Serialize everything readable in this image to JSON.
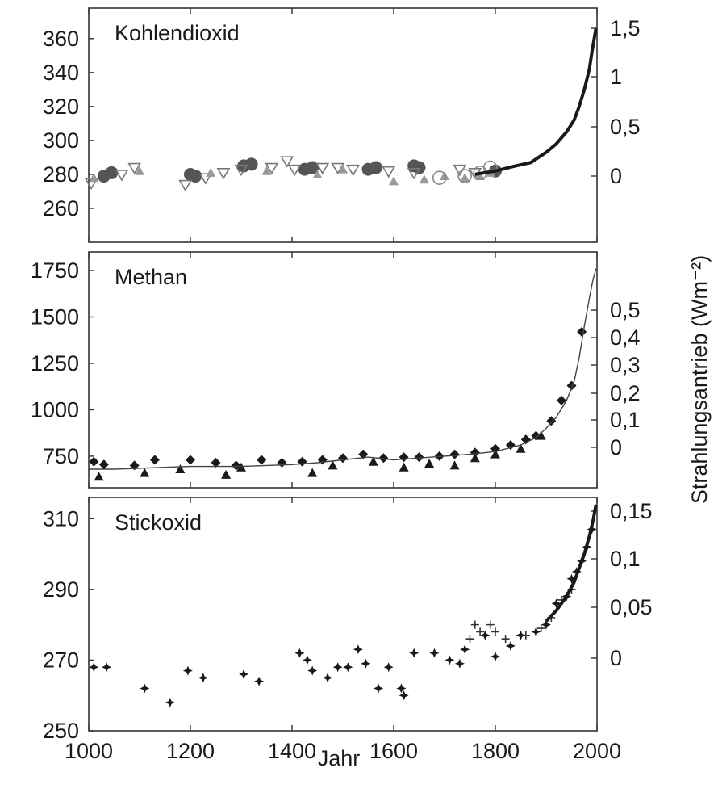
{
  "chart_data": [
    {
      "type": "scatter",
      "title": "Kohlendioxid",
      "xlim": [
        1000,
        2000
      ],
      "ylim": [
        240,
        378
      ],
      "y_ticks": [
        "260",
        "280",
        "300",
        "320",
        "340",
        "360"
      ],
      "y_tick_values": [
        260,
        280,
        300,
        320,
        340,
        360
      ],
      "y2_ticks": [
        "0",
        "0,5",
        "1",
        "1,5"
      ],
      "y2_tick_values": [
        0,
        0.5,
        1,
        1.5
      ],
      "series": [
        {
          "marker": "circle",
          "color": "#555555",
          "x": [
            1030,
            1045,
            1200,
            1210,
            1305,
            1320,
            1425,
            1440,
            1550,
            1565,
            1640,
            1650,
            1800
          ],
          "y": [
            279,
            281,
            280,
            279,
            285,
            286,
            283,
            284,
            283,
            284,
            285,
            284,
            282
          ]
        },
        {
          "marker": "triangle-down",
          "color": "#777777",
          "x": [
            1005,
            1065,
            1090,
            1190,
            1230,
            1265,
            1300,
            1360,
            1390,
            1405,
            1460,
            1490,
            1520,
            1590,
            1640,
            1730,
            1760
          ],
          "y": [
            275,
            280,
            284,
            274,
            278,
            281,
            283,
            284,
            288,
            283,
            284,
            284,
            283,
            282,
            281,
            283,
            281
          ]
        },
        {
          "marker": "triangle-up",
          "color": "#999999",
          "x": [
            1010,
            1100,
            1240,
            1350,
            1450,
            1500,
            1600,
            1660,
            1700,
            1740,
            1770,
            1790
          ],
          "y": [
            278,
            282,
            281,
            282,
            280,
            283,
            276,
            277,
            279,
            278,
            279,
            281
          ]
        },
        {
          "marker": "circle-open",
          "color": "#888888",
          "x": [
            1690,
            1740,
            1770,
            1790
          ],
          "y": [
            278,
            279,
            281,
            284
          ]
        },
        {
          "marker": "trend",
          "color": "#1a1a1a",
          "x": [
            1760,
            1800,
            1840,
            1870,
            1900,
            1920,
            1940,
            1955,
            1965,
            1975,
            1985,
            1990,
            1998
          ],
          "y": [
            280,
            282,
            285,
            287,
            293,
            298,
            305,
            312,
            320,
            330,
            342,
            352,
            366
          ]
        }
      ]
    },
    {
      "type": "scatter",
      "title": "Methan",
      "xlim": [
        1000,
        2000
      ],
      "ylim": [
        580,
        1850
      ],
      "y_ticks": [
        "750",
        "1000",
        "1250",
        "1500",
        "1750"
      ],
      "y_tick_values": [
        750,
        1000,
        1250,
        1500,
        1750
      ],
      "y2_ticks": [
        "0",
        "0,1",
        "0,2",
        "0,3",
        "0,4",
        "0,5"
      ],
      "y2_tick_values": [
        0,
        0.1,
        0.2,
        0.3,
        0.4,
        0.5
      ],
      "series": [
        {
          "marker": "diamond",
          "color": "#1a1a1a",
          "x": [
            1010,
            1030,
            1090,
            1130,
            1200,
            1250,
            1290,
            1340,
            1380,
            1420,
            1460,
            1500,
            1540,
            1580,
            1620,
            1650,
            1690,
            1720,
            1760,
            1800,
            1830,
            1860,
            1880,
            1910,
            1930,
            1950,
            1970
          ],
          "y": [
            720,
            705,
            700,
            730,
            730,
            715,
            700,
            730,
            715,
            720,
            730,
            740,
            760,
            740,
            745,
            745,
            750,
            760,
            770,
            790,
            810,
            840,
            860,
            940,
            1050,
            1130,
            1420
          ]
        },
        {
          "marker": "triangle-up",
          "color": "#1a1a1a",
          "x": [
            1020,
            1110,
            1180,
            1270,
            1300,
            1440,
            1480,
            1560,
            1620,
            1670,
            1720,
            1760,
            1800,
            1850,
            1890
          ],
          "y": [
            640,
            660,
            680,
            650,
            690,
            660,
            700,
            720,
            690,
            710,
            700,
            740,
            760,
            790,
            860
          ]
        },
        {
          "marker": "fit",
          "color": "#444444",
          "x": [
            1000,
            1050,
            1100,
            1150,
            1200,
            1250,
            1300,
            1350,
            1400,
            1450,
            1500,
            1550,
            1600,
            1650,
            1700,
            1750,
            1800,
            1850,
            1880,
            1900,
            1920,
            1940,
            1955,
            1965,
            1975,
            1985,
            1992,
            1998
          ],
          "y": [
            680,
            680,
            685,
            690,
            695,
            695,
            695,
            700,
            705,
            715,
            730,
            745,
            730,
            740,
            750,
            760,
            775,
            810,
            850,
            900,
            960,
            1050,
            1150,
            1280,
            1450,
            1600,
            1700,
            1760
          ]
        }
      ]
    },
    {
      "type": "scatter",
      "title": "Stickoxid",
      "xlim": [
        1000,
        2000
      ],
      "ylim": [
        250,
        316
      ],
      "y_ticks": [
        "250",
        "270",
        "290",
        "310"
      ],
      "y_tick_values": [
        250,
        270,
        290,
        310
      ],
      "y2_ticks": [
        "0",
        "0,05",
        "0,1",
        "0,15"
      ],
      "y2_tick_values": [
        0,
        0.05,
        0.1,
        0.15
      ],
      "series": [
        {
          "marker": "star",
          "color": "#1a1a1a",
          "x": [
            1010,
            1035,
            1110,
            1160,
            1195,
            1225,
            1305,
            1335,
            1415,
            1430,
            1440,
            1470,
            1490,
            1510,
            1530,
            1545,
            1570,
            1590,
            1615,
            1620,
            1640,
            1680,
            1710,
            1730,
            1740,
            1780,
            1800,
            1830,
            1850,
            1880,
            1900,
            1920,
            1940,
            1950,
            1960,
            1970,
            1980,
            1990
          ],
          "y": [
            268,
            268,
            262,
            258,
            267,
            265,
            266,
            264,
            272,
            270,
            267,
            265,
            268,
            268,
            273,
            269,
            262,
            268,
            262,
            260,
            272,
            272,
            270,
            269,
            273,
            277,
            271,
            274,
            277,
            278,
            280,
            286,
            288,
            293,
            295,
            298,
            302,
            307
          ]
        },
        {
          "marker": "plus",
          "color": "#333333",
          "x": [
            1750,
            1760,
            1770,
            1790,
            1800,
            1820,
            1860,
            1890,
            1910,
            1930,
            1950
          ],
          "y": [
            276,
            280,
            278,
            280,
            278,
            276,
            277,
            279,
            282,
            287,
            290
          ]
        },
        {
          "marker": "trend",
          "color": "#1a1a1a",
          "x": [
            1900,
            1920,
            1940,
            1955,
            1965,
            1975,
            1985,
            1993,
            1998
          ],
          "y": [
            281,
            284,
            288,
            292,
            296,
            300,
            305,
            310,
            314
          ]
        }
      ]
    }
  ],
  "x_ticks": [
    "1000",
    "1200",
    "1400",
    "1600",
    "1800",
    "2000"
  ],
  "x_tick_values": [
    1000,
    1200,
    1400,
    1600,
    1800,
    2000
  ],
  "xlabel": "Jahr",
  "y2label": "Strahlungsantrieb (Wm⁻²)"
}
